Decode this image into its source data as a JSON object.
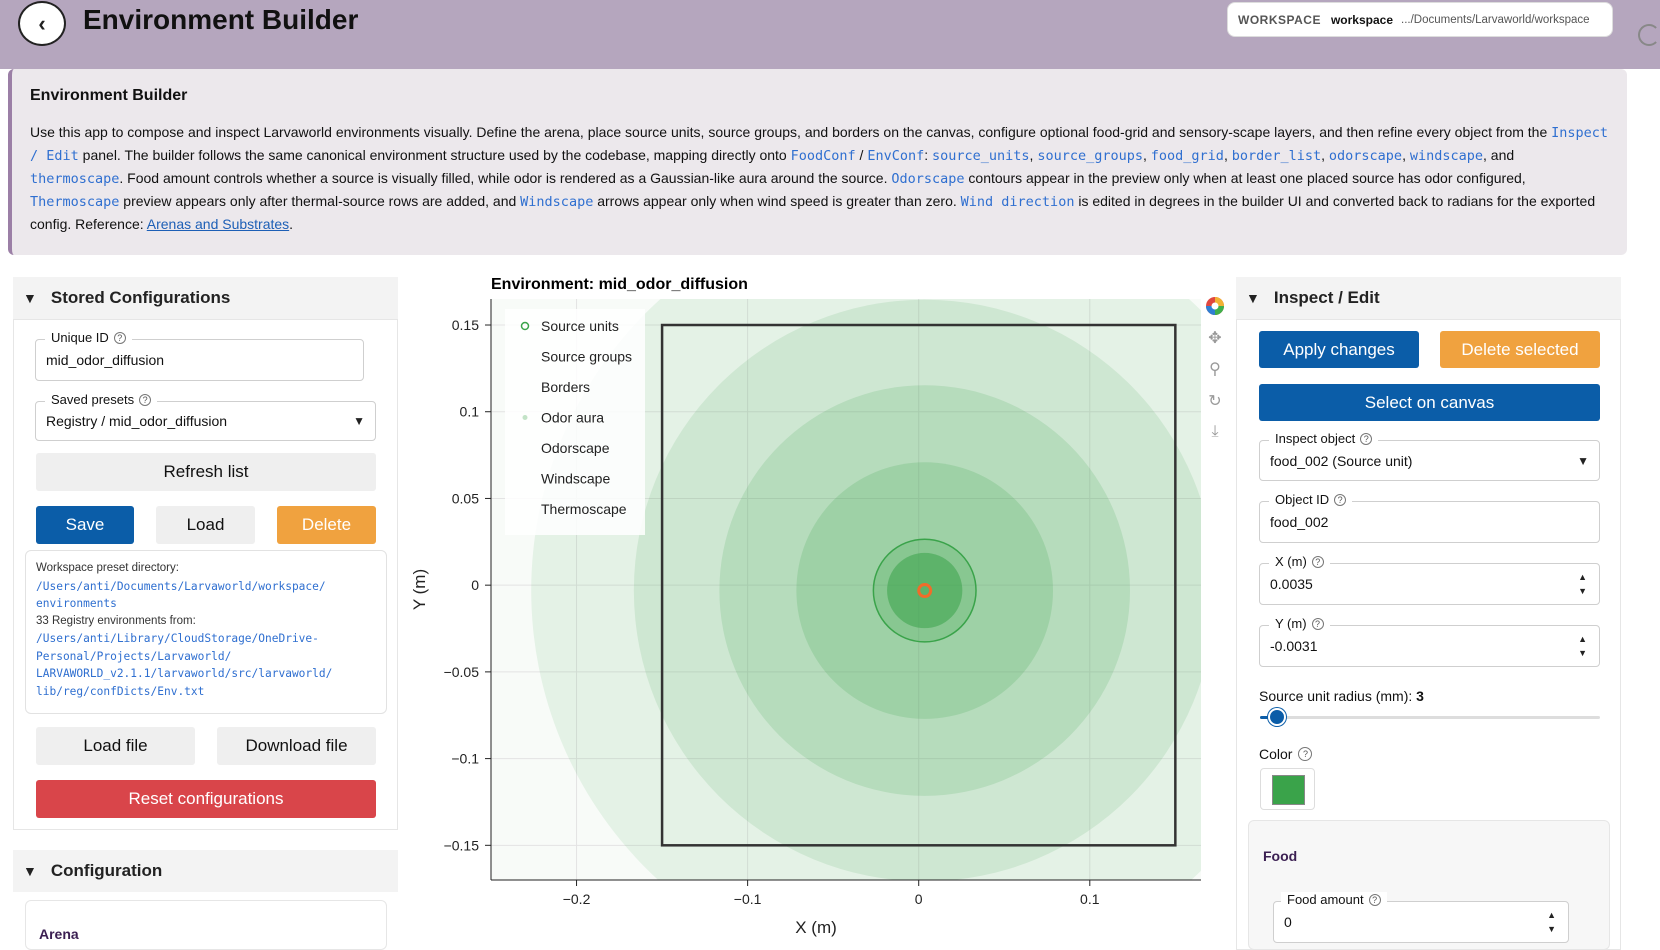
{
  "header": {
    "back_icon": "chevron-left-icon",
    "title": "Environment Builder",
    "workspace_label": "WORKSPACE",
    "workspace_name": "workspace",
    "workspace_path": ".../Documents/Larvaworld/workspace"
  },
  "description": {
    "title": "Environment Builder",
    "p1": "Use this app to compose and inspect Larvaworld environments visually. Define the arena, place source units, source groups, and borders on the canvas, configure optional food-grid and sensory-scape layers, and then refine every object from the",
    "code_inspect": "Inspect / Edit",
    "p2": " panel. The builder follows the same canonical environment structure used by the codebase, mapping directly onto ",
    "code_foodconf": "FoodConf",
    "slash": " / ",
    "code_envconf": "EnvConf",
    "colon": ": ",
    "code_source_units": "source_units",
    "code_source_groups": "source_groups",
    "code_food_grid": "food_grid",
    "code_border_list": "border_list",
    "code_odorscape": "odorscape",
    "code_windscape": "windscape",
    "comma": ", ",
    "and": ", and ",
    "code_thermoscape": "thermoscape",
    "p3": ". Food amount controls whether a source is visually filled, while odor is rendered as a Gaussian-like aura around the source. ",
    "code_odorscape2": "Odorscape",
    "p4": " contours appear in the preview only when at least one placed source has odor configured, ",
    "code_thermoscape2": "Thermoscape",
    "p5": " preview appears only after thermal-source rows are added, and ",
    "code_windscape2": "Windscape",
    "p6": " arrows appear only when wind speed is greater than zero. ",
    "code_wind_direction": "Wind direction",
    "p7": " is edited in degrees in the builder UI and converted back to radians for the exported config. Reference: ",
    "link": "Arenas and Substrates",
    "end": "."
  },
  "stored": {
    "title": "Stored Configurations",
    "unique_id_label": "Unique ID",
    "unique_id_value": "mid_odor_diffusion",
    "presets_label": "Saved presets",
    "presets_value": "Registry / mid_odor_diffusion",
    "refresh": "Refresh list",
    "save": "Save",
    "load": "Load",
    "delete": "Delete",
    "info_l1": "Workspace preset directory:",
    "info_p1a": "/Users/anti/Documents/Larvaworld/workspace/",
    "info_p1b": "environments",
    "info_l2": "33 Registry environments from:",
    "info_p2a": "/Users/anti/Library/CloudStorage/OneDrive-",
    "info_p2b": "Personal/Projects/Larvaworld/",
    "info_p2c": "LARVAWORLD_v2.1.1/larvaworld/src/larvaworld/",
    "info_p2d": "lib/reg/confDicts/Env.txt",
    "load_file": "Load file",
    "download_file": "Download file",
    "reset": "Reset configurations"
  },
  "configuration": {
    "title": "Configuration",
    "arena": "Arena"
  },
  "inspect": {
    "title": "Inspect / Edit",
    "apply": "Apply changes",
    "delete_selected": "Delete selected",
    "select_canvas": "Select on canvas",
    "inspect_label": "Inspect object",
    "inspect_value": "food_002 (Source unit)",
    "object_id_label": "Object ID",
    "object_id_value": "food_002",
    "x_label": "X (m)",
    "x_value": "0.0035",
    "y_label": "Y (m)",
    "y_value": "-0.0031",
    "radius_label": "Source unit radius (mm):",
    "radius_value": "3",
    "radius_fraction": 0.05,
    "color_label": "Color",
    "color_value": "#3aa34a",
    "food_title": "Food",
    "food_amount_label": "Food amount",
    "food_amount_value": "0"
  },
  "chart_data": {
    "type": "scatter",
    "title": "Environment: mid_odor_diffusion",
    "xlabel": "X (m)",
    "ylabel": "Y (m)",
    "xlim": [
      -0.25,
      0.165
    ],
    "ylim": [
      -0.17,
      0.165
    ],
    "x_ticks": [
      -0.2,
      -0.1,
      0,
      0.1
    ],
    "x_tick_labels": [
      "−0.2",
      "−0.1",
      "0",
      "0.1"
    ],
    "y_ticks": [
      0.15,
      0.1,
      0.05,
      0,
      -0.05,
      -0.1,
      -0.15
    ],
    "y_tick_labels": [
      "0.15",
      "0.1",
      "0.05",
      "0",
      "−0.05",
      "−0.1",
      "−0.15"
    ],
    "legend": [
      "Source units",
      "Source groups",
      "Borders",
      "Odor aura",
      "Odorscape",
      "Windscape",
      "Thermoscape"
    ],
    "legend_position": "top-left",
    "grid": true,
    "arena": {
      "x": [
        -0.15,
        0.15
      ],
      "y": [
        -0.15,
        0.15
      ]
    },
    "source_units": [
      {
        "x": 0.0035,
        "y": -0.0031
      }
    ],
    "odor_aura_radii": [
      0.23,
      0.17,
      0.12,
      0.075,
      0.03
    ],
    "colors": {
      "aura": "#3aa34a",
      "source_ring": "#f06c2a",
      "border": "#333333"
    },
    "toolbar_icons": [
      "bokeh-logo-icon",
      "pan-icon",
      "box-zoom-icon",
      "reset-icon",
      "save-icon"
    ]
  }
}
